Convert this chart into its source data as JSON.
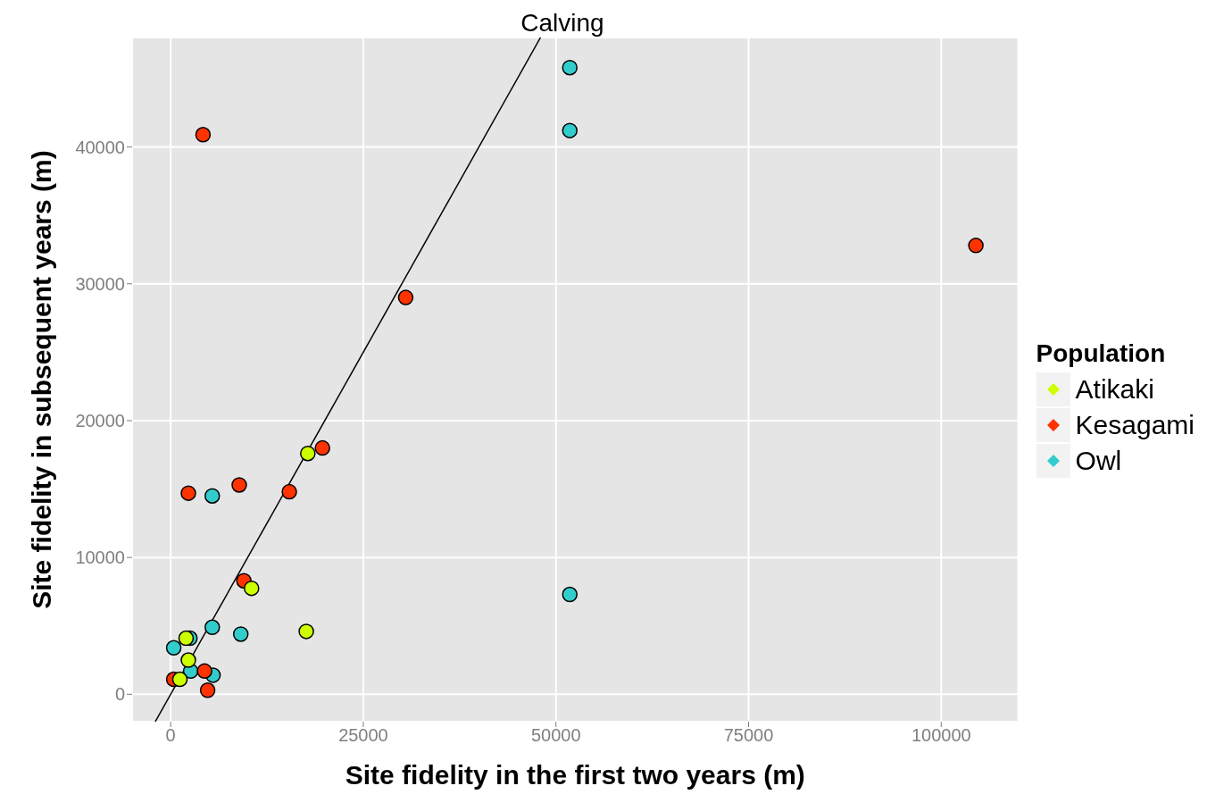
{
  "chart_data": {
    "type": "scatter",
    "title": "Calving",
    "xlabel": "Site fidelity in the first two years (m)",
    "ylabel": "Site fidelity in subsequent years (m)",
    "legend_title": "Population",
    "xlim": [
      -5000,
      110000
    ],
    "ylim": [
      -2000,
      48000
    ],
    "xticks": [
      0,
      25000,
      50000,
      75000,
      100000
    ],
    "yticks": [
      0,
      10000,
      20000,
      30000,
      40000
    ],
    "grid": true,
    "legend": "right",
    "marker": "circle",
    "series": [
      {
        "name": "Atikaki",
        "color": "#ccff00",
        "x": [
          17800,
          10500,
          17600,
          2300,
          1200,
          2000
        ],
        "values": [
          17600,
          7750,
          4600,
          2500,
          1100,
          4100
        ]
      },
      {
        "name": "Kesagami",
        "color": "#ff3300",
        "x": [
          4200,
          104500,
          30500,
          19700,
          2300,
          8900,
          15400,
          9500,
          4400,
          4800,
          400
        ],
        "values": [
          40900,
          32800,
          29000,
          18000,
          14700,
          15300,
          14800,
          8300,
          1700,
          300,
          1100
        ]
      },
      {
        "name": "Owl",
        "color": "#33cccc",
        "x": [
          51800,
          51800,
          51800,
          5400,
          5400,
          9100,
          2500,
          400,
          2600,
          5500
        ],
        "values": [
          45800,
          41200,
          7300,
          14500,
          4900,
          4400,
          4100,
          3400,
          1700,
          1400
        ]
      },
      {
        "type": "line",
        "marker": "none",
        "color": "#000000",
        "x": [
          -2000,
          48000
        ],
        "values": [
          -2000,
          48000
        ]
      }
    ]
  }
}
